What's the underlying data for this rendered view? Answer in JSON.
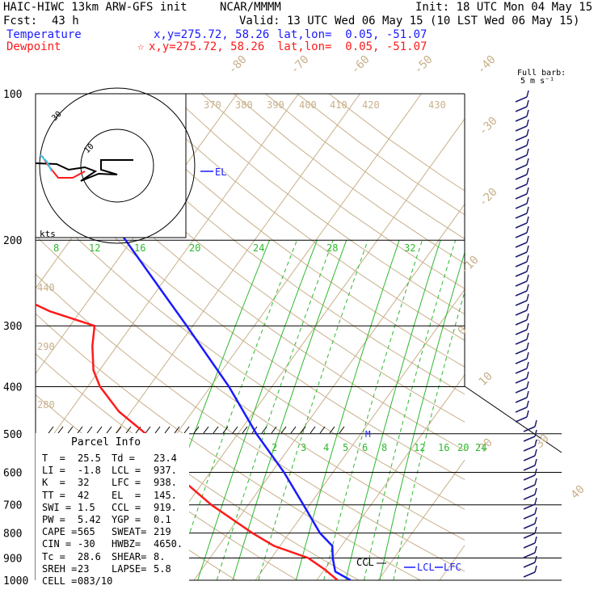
{
  "header": {
    "model": "HAIC-HIWC 13km ARW-GFS init",
    "org": "NCAR/MMMM",
    "init": "Init: 18 UTC Mon 04 May 15",
    "fcst_label": "Fcst:",
    "fcst_value": "43 h",
    "valid": "Valid: 13 UTC Wed 06 May 15 (10 LST Wed 06 May 15)",
    "temp_label": "Temperature",
    "temp_xy": "x,y=275.72, 58.26",
    "temp_latlon": "lat,lon=  0.05, -51.07",
    "dew_label": "Dewpoint",
    "dew_xy": "x,y=275.72, 58.26",
    "dew_latlon": "lat,lon=  0.05, -51.07",
    "dew_marker": "☆"
  },
  "barb_key": {
    "line1": "Full barb:",
    "line2": "5 m s⁻¹"
  },
  "parcel": {
    "title": "Parcel Info",
    "rows": [
      [
        "T  =",
        "25.5",
        "Td =",
        "23.4"
      ],
      [
        "LI =",
        "-1.8",
        "LCL =",
        "937."
      ],
      [
        "K  =",
        "32",
        "LFC =",
        "938."
      ],
      [
        "TT =",
        "42",
        "EL  =",
        "145."
      ],
      [
        "SWI =",
        "1.5",
        "CCL =",
        "919."
      ],
      [
        "PW =",
        "5.42",
        "YGP =",
        "0.1"
      ],
      [
        "CAPE =",
        "565",
        "SWEAT=",
        "219"
      ],
      [
        "CIN =",
        "-30",
        "HWBZ=",
        "4650."
      ],
      [
        "Tc =",
        "28.6",
        "SHEAR=",
        "8."
      ],
      [
        "SREH =",
        "23",
        "LAPSE=",
        "5.8"
      ],
      [
        "CELL =",
        "083/10",
        "",
        ""
      ]
    ]
  },
  "hodograph": {
    "units": "kts",
    "ring_labels": [
      "10",
      "30"
    ]
  },
  "level_labels": {
    "el": "EL",
    "ccl": "CCL",
    "lcl": "LCL",
    "lfc": "LFC",
    "m": "M"
  },
  "colors": {
    "temperature": "#1a1aff",
    "dewpoint": "#ff1a1a",
    "isotherm": "#c8b08a",
    "mixing_ratio": "#2eb82e",
    "barbs": "#1a1a6e"
  },
  "chart_data": {
    "type": "line",
    "title": "",
    "xlabel": "",
    "ylabel": "",
    "pressure_levels": [
      100,
      200,
      300,
      400,
      500,
      600,
      700,
      800,
      900,
      1000
    ],
    "isotherm_labels": [
      "-80",
      "-70",
      "-60",
      "-50",
      "-40",
      "-30",
      "-20",
      "-10",
      "0",
      "10",
      "20",
      "30",
      "40"
    ],
    "theta_labels": [
      "370",
      "380",
      "390",
      "400",
      "410",
      "420",
      "430",
      "440",
      "290",
      "280",
      "270"
    ],
    "mixing_ratio_upper": [
      "8",
      "12",
      "16",
      "20",
      "24",
      "28",
      "32"
    ],
    "mixing_ratio_lower": [
      "2",
      "3",
      "4",
      "5",
      "6",
      "8",
      "12",
      "16",
      "20",
      "24"
    ],
    "grid": true,
    "series": [
      {
        "name": "Temperature",
        "pressure": [
          1000,
          960,
          930,
          900,
          850,
          800,
          700,
          600,
          500,
          400,
          300,
          250,
          200,
          170,
          145,
          120,
          100
        ],
        "temperature_c": [
          25.5,
          22,
          21,
          20,
          18.5,
          15,
          9,
          2,
          -7,
          -17,
          -31,
          -40,
          -51,
          -59,
          -68,
          -73,
          -70
        ]
      },
      {
        "name": "Dewpoint",
        "pressure": [
          1000,
          950,
          900,
          850,
          800,
          700,
          600,
          500,
          450,
          400,
          370,
          330,
          300,
          280,
          250,
          220,
          200,
          170,
          150,
          120,
          100
        ],
        "dewpoint_c": [
          23.4,
          20,
          16,
          9,
          4,
          -6,
          -16,
          -25,
          -32,
          -38,
          -41,
          -44,
          -46,
          -55,
          -66,
          -74,
          -80,
          -84,
          -86,
          -86,
          -84
        ]
      }
    ]
  }
}
